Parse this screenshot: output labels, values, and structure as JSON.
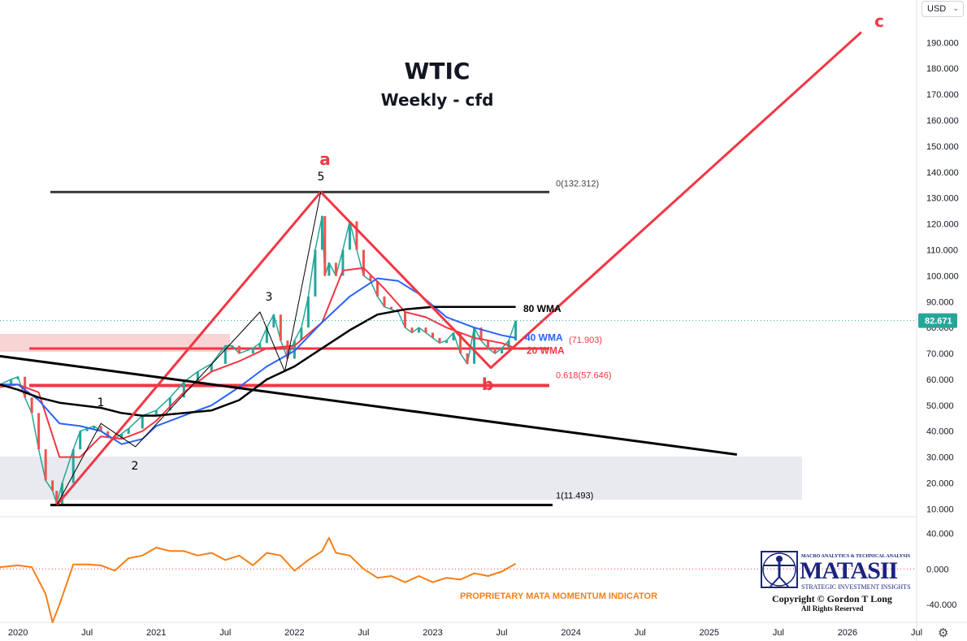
{
  "header": {
    "currency": "USD",
    "title": "WTIC",
    "subtitle": "Weekly - cfd"
  },
  "chart_data": {
    "type": "line",
    "timeframe": "weekly",
    "price_axis": {
      "ticks": [
        10,
        20,
        30,
        40,
        50,
        60,
        70,
        80,
        90,
        100,
        110,
        120,
        130,
        140,
        150,
        160,
        170,
        180,
        190
      ],
      "tick_labels": [
        "10.000",
        "20.000",
        "30.000",
        "40.000",
        "50.000",
        "60.000",
        "70.000",
        "80.000",
        "90.000",
        "100.000",
        "110.000",
        "120.000",
        "130.000",
        "140.000",
        "150.000",
        "160.000",
        "170.000",
        "180.000",
        "190.000"
      ],
      "last_price": 82.671,
      "last_price_label": "82.671",
      "ylim": [
        7,
        197
      ]
    },
    "time_axis": {
      "ticks": [
        2020.0,
        2020.5,
        2021.0,
        2021.5,
        2022.0,
        2022.5,
        2023.0,
        2023.5,
        2024.0,
        2024.5,
        2025.0,
        2025.5,
        2026.0,
        2026.5
      ],
      "tick_labels": [
        "2020",
        "Jul",
        "2021",
        "Jul",
        "2022",
        "Jul",
        "2023",
        "Jul",
        "2024",
        "Jul",
        "2025",
        "Jul",
        "2026",
        "Jul"
      ],
      "xlim": [
        2019.87,
        2026.5
      ]
    },
    "series": [
      {
        "name": "Price",
        "color": "#26a69a",
        "x": [
          2019.87,
          2019.95,
          2020.0,
          2020.05,
          2020.1,
          2020.15,
          2020.2,
          2020.25,
          2020.28,
          2020.32,
          2020.4,
          2020.45,
          2020.5,
          2020.55,
          2020.6,
          2020.65,
          2020.7,
          2020.75,
          2020.8,
          2020.9,
          2021.0,
          2021.1,
          2021.2,
          2021.3,
          2021.4,
          2021.5,
          2021.55,
          2021.6,
          2021.7,
          2021.75,
          2021.8,
          2021.85,
          2021.9,
          2021.95,
          2022.0,
          2022.05,
          2022.1,
          2022.15,
          2022.2,
          2022.22,
          2022.25,
          2022.3,
          2022.35,
          2022.4,
          2022.45,
          2022.5,
          2022.55,
          2022.6,
          2022.65,
          2022.7,
          2022.75,
          2022.8,
          2022.85,
          2022.9,
          2022.95,
          2023.0,
          2023.05,
          2023.1,
          2023.15,
          2023.2,
          2023.25,
          2023.3,
          2023.35,
          2023.4,
          2023.45,
          2023.5,
          2023.55,
          2023.6
        ],
        "values": [
          58,
          60,
          61,
          53,
          47,
          33,
          21,
          17,
          12,
          20,
          33,
          40,
          41,
          42,
          40,
          38,
          37,
          39,
          41,
          46,
          48,
          53,
          59,
          63,
          66,
          73,
          73,
          70,
          72,
          74,
          80,
          85,
          75,
          68,
          75,
          80,
          92,
          110,
          123,
          100,
          105,
          100,
          110,
          121,
          110,
          100,
          98,
          92,
          88,
          87,
          86,
          80,
          78,
          80,
          78,
          76,
          74,
          75,
          78,
          70,
          66,
          80,
          75,
          72,
          70,
          72,
          75,
          82.67
        ]
      },
      {
        "name": "20 WMA",
        "color": "#f23645",
        "x": [
          2019.87,
          2020.0,
          2020.15,
          2020.3,
          2020.45,
          2020.6,
          2020.75,
          2020.9,
          2021.0,
          2021.2,
          2021.4,
          2021.6,
          2021.8,
          2022.0,
          2022.2,
          2022.35,
          2022.5,
          2022.65,
          2022.8,
          2022.95,
          2023.1,
          2023.3,
          2023.5,
          2023.6
        ],
        "values": [
          57,
          58,
          55,
          30,
          30,
          38,
          37,
          40,
          44,
          55,
          63,
          67,
          72,
          73,
          82,
          102,
          103,
          95,
          86,
          84,
          80,
          76,
          74,
          72
        ]
      },
      {
        "name": "40 WMA",
        "color": "#2962ff",
        "x": [
          2019.87,
          2020.0,
          2020.15,
          2020.3,
          2020.45,
          2020.6,
          2020.75,
          2020.9,
          2021.0,
          2021.2,
          2021.4,
          2021.6,
          2021.8,
          2022.0,
          2022.2,
          2022.4,
          2022.6,
          2022.75,
          2022.9,
          2023.1,
          2023.3,
          2023.5,
          2023.6
        ],
        "values": [
          58,
          58,
          52,
          43,
          42,
          40,
          35,
          37,
          42,
          46,
          50,
          57,
          65,
          71,
          82,
          92,
          99,
          98,
          93,
          84,
          80,
          77,
          76
        ]
      },
      {
        "name": "80 WMA",
        "color": "#000000",
        "x": [
          2019.87,
          2020.0,
          2020.15,
          2020.3,
          2020.45,
          2020.6,
          2020.75,
          2020.9,
          2021.0,
          2021.2,
          2021.4,
          2021.6,
          2021.8,
          2022.0,
          2022.2,
          2022.4,
          2022.6,
          2022.8,
          2023.0,
          2023.2,
          2023.4,
          2023.6
        ],
        "values": [
          58,
          56,
          53,
          51,
          50,
          49,
          47,
          46,
          46,
          47,
          48,
          52,
          60,
          65,
          72,
          79,
          85,
          87,
          88,
          88,
          88,
          88
        ]
      },
      {
        "name": "Momentum",
        "color": "#f57f17",
        "x": [
          2019.87,
          2020.0,
          2020.1,
          2020.2,
          2020.25,
          2020.3,
          2020.4,
          2020.5,
          2020.6,
          2020.7,
          2020.8,
          2020.9,
          2021.0,
          2021.1,
          2021.2,
          2021.3,
          2021.4,
          2021.5,
          2021.6,
          2021.7,
          2021.8,
          2021.9,
          2022.0,
          2022.1,
          2022.2,
          2022.25,
          2022.3,
          2022.4,
          2022.5,
          2022.6,
          2022.7,
          2022.8,
          2022.9,
          2023.0,
          2023.1,
          2023.2,
          2023.3,
          2023.4,
          2023.5,
          2023.6
        ],
        "values": [
          2,
          4,
          2,
          -28,
          -60,
          -40,
          5,
          5,
          4,
          -2,
          12,
          15,
          24,
          20,
          20,
          15,
          18,
          10,
          15,
          4,
          18,
          15,
          -2,
          10,
          20,
          35,
          18,
          15,
          0,
          -10,
          -8,
          -15,
          -8,
          -15,
          -10,
          -12,
          -5,
          -8,
          -3,
          6
        ]
      }
    ],
    "wave_lines": [
      {
        "name": "red-wave",
        "color": "#f23645",
        "x": [
          2020.28,
          2022.19,
          2023.42,
          2026.1
        ],
        "values": [
          11.493,
          132.312,
          64.5,
          194
        ]
      },
      {
        "name": "black-subwave",
        "color": "#000000",
        "x": [
          2020.28,
          2020.6,
          2020.85,
          2021.75,
          2021.93,
          2022.19
        ],
        "values": [
          11.493,
          43,
          34,
          86,
          63,
          132.312
        ]
      },
      {
        "name": "black-trendline",
        "color": "#000000",
        "x": [
          2019.87,
          2025.2
        ],
        "values": [
          69,
          31
        ]
      }
    ],
    "levels": [
      {
        "label": "0(132.312)",
        "value": 132.312,
        "color": "#444444"
      },
      {
        "label": "0.618(57.646)",
        "value": 57.646,
        "color": "#f23645"
      },
      {
        "label": "1(11.493)",
        "value": 11.493,
        "color": "#000000"
      },
      {
        "label": "(71.903)",
        "value": 71.903,
        "color": "#f23645"
      }
    ],
    "ma_labels": [
      {
        "text": "80 WMA",
        "color": "#000000",
        "value": 87.5
      },
      {
        "text": "40 WMA",
        "color": "#2962ff",
        "value": 76.5
      },
      {
        "text": "20 WMA",
        "color": "#f23645",
        "value": 71.5
      }
    ],
    "wave_labels": [
      {
        "text": "1",
        "color": "#000000"
      },
      {
        "text": "2",
        "color": "#000000"
      },
      {
        "text": "3",
        "color": "#000000"
      },
      {
        "text": "5",
        "color": "#000000"
      },
      {
        "text": "a",
        "color": "#f23645"
      },
      {
        "text": "b",
        "color": "#f23645"
      },
      {
        "text": "c",
        "color": "#f23645"
      }
    ],
    "indicator": {
      "name": "PROPRIETARY MATA MOMENTUM INDICATOR",
      "color": "#f57f17",
      "ticks": [
        40,
        0,
        -40
      ],
      "tick_labels": [
        "40.000",
        "0.000",
        "-40.000"
      ],
      "ylim": [
        -60,
        55
      ]
    },
    "grid": false,
    "legend": "none"
  },
  "watermark": {
    "top_tagline": "MACRO ANALYTICS & TECHNICAL ANALYSIS",
    "brand": "MATASII",
    "tagline": "STRATEGIC INVESTMENT INSIGHTS",
    "copyright": "Copyright © Gordon T Long",
    "rights": "All Rights Reserved"
  },
  "icons": {
    "settings": "gear-icon",
    "dropdown": "chevron-down-icon"
  }
}
